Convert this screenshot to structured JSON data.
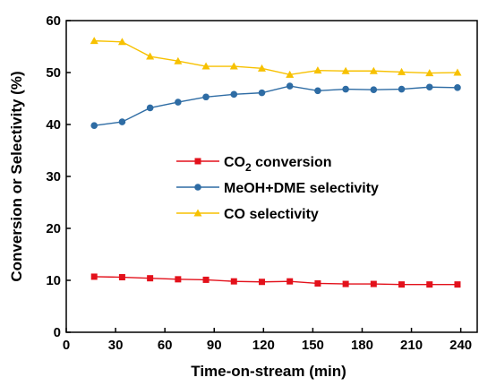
{
  "chart_data": {
    "type": "line",
    "xlabel": "Time-on-stream (min)",
    "ylabel": "Conversion or Selectivity (%)",
    "xlim": [
      0,
      250
    ],
    "ylim": [
      0,
      60
    ],
    "xticks": [
      "0",
      "30",
      "60",
      "90",
      "120",
      "150",
      "180",
      "210",
      "240"
    ],
    "yticks": [
      "0",
      "10",
      "20",
      "30",
      "40",
      "50",
      "60"
    ],
    "grid": false,
    "legend_position": "center-right",
    "series": [
      {
        "name_main": "CO",
        "name_sub": "2",
        "name_rest": " conversion",
        "color": "#e3111b",
        "marker": "square",
        "x": [
          17,
          34,
          51,
          68,
          85,
          102,
          119,
          136,
          153,
          170,
          187,
          204,
          221,
          238
        ],
        "y": [
          10.7,
          10.6,
          10.4,
          10.2,
          10.1,
          9.8,
          9.7,
          9.8,
          9.4,
          9.3,
          9.3,
          9.2,
          9.2,
          9.2
        ]
      },
      {
        "name": "MeOH+DME selectivity",
        "color": "#2e6ca4",
        "marker": "circle",
        "x": [
          17,
          34,
          51,
          68,
          85,
          102,
          119,
          136,
          153,
          170,
          187,
          204,
          221,
          238
        ],
        "y": [
          39.8,
          40.5,
          43.2,
          44.3,
          45.3,
          45.8,
          46.1,
          47.4,
          46.5,
          46.8,
          46.7,
          46.8,
          47.2,
          47.1
        ]
      },
      {
        "name": "CO selectivity",
        "color": "#f7c100",
        "marker": "triangle",
        "x": [
          17,
          34,
          51,
          68,
          85,
          102,
          119,
          136,
          153,
          170,
          187,
          204,
          221,
          238
        ],
        "y": [
          56.1,
          55.9,
          53.1,
          52.2,
          51.2,
          51.2,
          50.8,
          49.6,
          50.4,
          50.3,
          50.3,
          50.1,
          49.9,
          50.0
        ]
      }
    ]
  }
}
